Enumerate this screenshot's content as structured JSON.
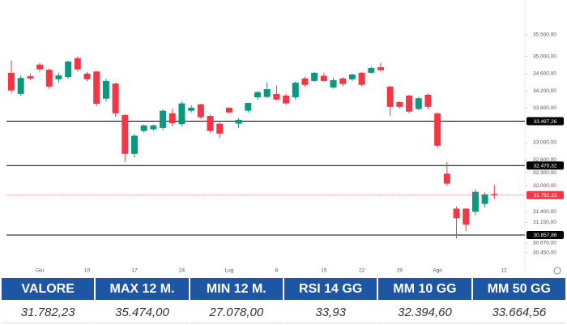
{
  "chart_data": {
    "type": "candlestick",
    "categories": [
      null,
      null,
      null,
      "Giu",
      null,
      null,
      null,
      null,
      "10",
      null,
      null,
      null,
      null,
      "17",
      null,
      null,
      null,
      null,
      "24",
      null,
      null,
      null,
      null,
      "Lug",
      null,
      null,
      null,
      null,
      "8",
      null,
      null,
      null,
      null,
      "15",
      null,
      null,
      null,
      "22",
      null,
      null,
      null,
      "29",
      null,
      null,
      null,
      "Ago",
      null,
      null,
      null,
      null,
      null,
      null,
      "12"
    ],
    "open": [
      34620,
      34130,
      34540,
      34810,
      34690,
      34470,
      34520,
      34960,
      34600,
      34650,
      34020,
      34370,
      33640,
      32740,
      33270,
      33310,
      33340,
      33680,
      33430,
      33740,
      33890,
      33620,
      33440,
      33810,
      33440,
      33740,
      34050,
      34060,
      34130,
      34090,
      34050,
      34490,
      34430,
      34550,
      34280,
      34490,
      34470,
      34620,
      34620,
      34750,
      34300,
      33940,
      34090,
      33780,
      34110,
      33680,
      32280,
      31470,
      31470,
      31400,
      31580,
      31810,
      null
    ],
    "high": [
      34900,
      34560,
      34600,
      34850,
      34720,
      34620,
      34900,
      35000,
      34640,
      34660,
      34480,
      34390,
      33660,
      33210,
      33420,
      33420,
      33770,
      33780,
      33960,
      33870,
      33900,
      33650,
      33470,
      33820,
      33570,
      33930,
      34200,
      34400,
      34330,
      34130,
      34420,
      34530,
      34640,
      34620,
      34500,
      34520,
      34600,
      34640,
      34760,
      34850,
      34320,
      33960,
      34110,
      34060,
      34140,
      33700,
      32550,
      31520,
      31480,
      31920,
      31850,
      32020,
      null
    ],
    "low": [
      34150,
      34080,
      34450,
      34640,
      34250,
      34400,
      34480,
      34650,
      34420,
      33850,
      33950,
      33600,
      32550,
      32650,
      33230,
      33280,
      33290,
      33380,
      33380,
      33700,
      33550,
      33230,
      33100,
      33680,
      33340,
      33700,
      34000,
      34030,
      33980,
      33880,
      33990,
      34300,
      34400,
      34410,
      34250,
      34300,
      34430,
      34310,
      34600,
      34650,
      33620,
      33800,
      33680,
      33750,
      33780,
      32880,
      32000,
      30780,
      30950,
      31320,
      31500,
      31700,
      null
    ],
    "close": [
      34210,
      34500,
      34490,
      34700,
      34300,
      34560,
      34880,
      34700,
      34470,
      33900,
      34430,
      33680,
      32740,
      33160,
      33400,
      33400,
      33740,
      33450,
      33910,
      33810,
      33590,
      33270,
      33210,
      33700,
      33530,
      33920,
      34170,
      34240,
      34000,
      33910,
      34390,
      34340,
      34620,
      34430,
      34450,
      34360,
      34580,
      34340,
      34730,
      34680,
      33830,
      33830,
      33720,
      34030,
      33830,
      32930,
      32050,
      31250,
      31100,
      31860,
      31800,
      31782.23,
      null
    ],
    "up_color": "#089981",
    "down_color": "#f23645",
    "ylim": [
      30200,
      35650
    ],
    "yticks": [
      {
        "value": 35500,
        "label": "35.500,00"
      },
      {
        "value": 35000,
        "label": "35.000,00"
      },
      {
        "value": 34600,
        "label": "34.600,00"
      },
      {
        "value": 34200,
        "label": "34.200,00"
      },
      {
        "value": 33800,
        "label": "33.800,00"
      },
      {
        "value": 33000,
        "label": "33.000,00"
      },
      {
        "value": 32600,
        "label": "32.600,00"
      },
      {
        "value": 32300,
        "label": "32.300,00"
      },
      {
        "value": 32000,
        "label": "32.000,00"
      },
      {
        "value": 31400,
        "label": "31.400,00"
      },
      {
        "value": 31150,
        "label": "31.150,00"
      },
      {
        "value": 30670,
        "label": "30.670,00"
      },
      {
        "value": 30450,
        "label": "30.450,00"
      }
    ],
    "levels": [
      {
        "value": 33497.26,
        "label": "33.497,26"
      },
      {
        "value": 32470.32,
        "label": "32.470,32"
      },
      {
        "value": 30857.86,
        "label": "30.857,86"
      }
    ],
    "level_color": "#000000",
    "last_price": {
      "value": 31782.23,
      "label": "31.782,23"
    },
    "last_price_color": "#f23645"
  },
  "table": {
    "header": [
      "VALORE",
      "MAX 12 M.",
      "MIN 12 M.",
      "RSI 14 GG",
      "MM 10 GG",
      "MM 50 GG"
    ],
    "rows": [
      [
        "31.782,23",
        "35.474,00",
        "27.078,00",
        "33,93",
        "32.394,60",
        "33.664,56"
      ]
    ]
  }
}
